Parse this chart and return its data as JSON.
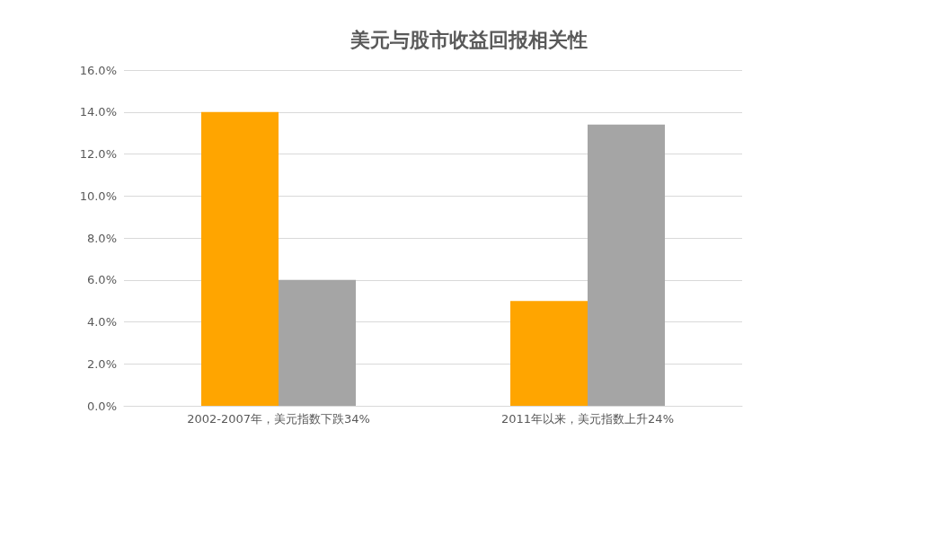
{
  "chart_data": {
    "type": "bar",
    "title": "美元与股市收益回报相关性",
    "categories": [
      "2002-2007年，美元指数下跌34%",
      "2011年以来，美元指数上升24%"
    ],
    "series": [
      {
        "color": "#ffa500",
        "values": [
          14.0,
          5.0
        ]
      },
      {
        "color": "#a5a5a5",
        "values": [
          6.0,
          13.4
        ]
      }
    ],
    "ylim": [
      0,
      16
    ],
    "yticks": [
      {
        "value": 0,
        "label": "0.0%"
      },
      {
        "value": 2,
        "label": "2.0%"
      },
      {
        "value": 4,
        "label": "4.0%"
      },
      {
        "value": 6,
        "label": "6.0%"
      },
      {
        "value": 8,
        "label": "8.0%"
      },
      {
        "value": 10,
        "label": "10.0%"
      },
      {
        "value": 12,
        "label": "12.0%"
      },
      {
        "value": 14,
        "label": "14.0%"
      },
      {
        "value": 16,
        "label": "16.0%"
      }
    ],
    "grid": "y"
  }
}
